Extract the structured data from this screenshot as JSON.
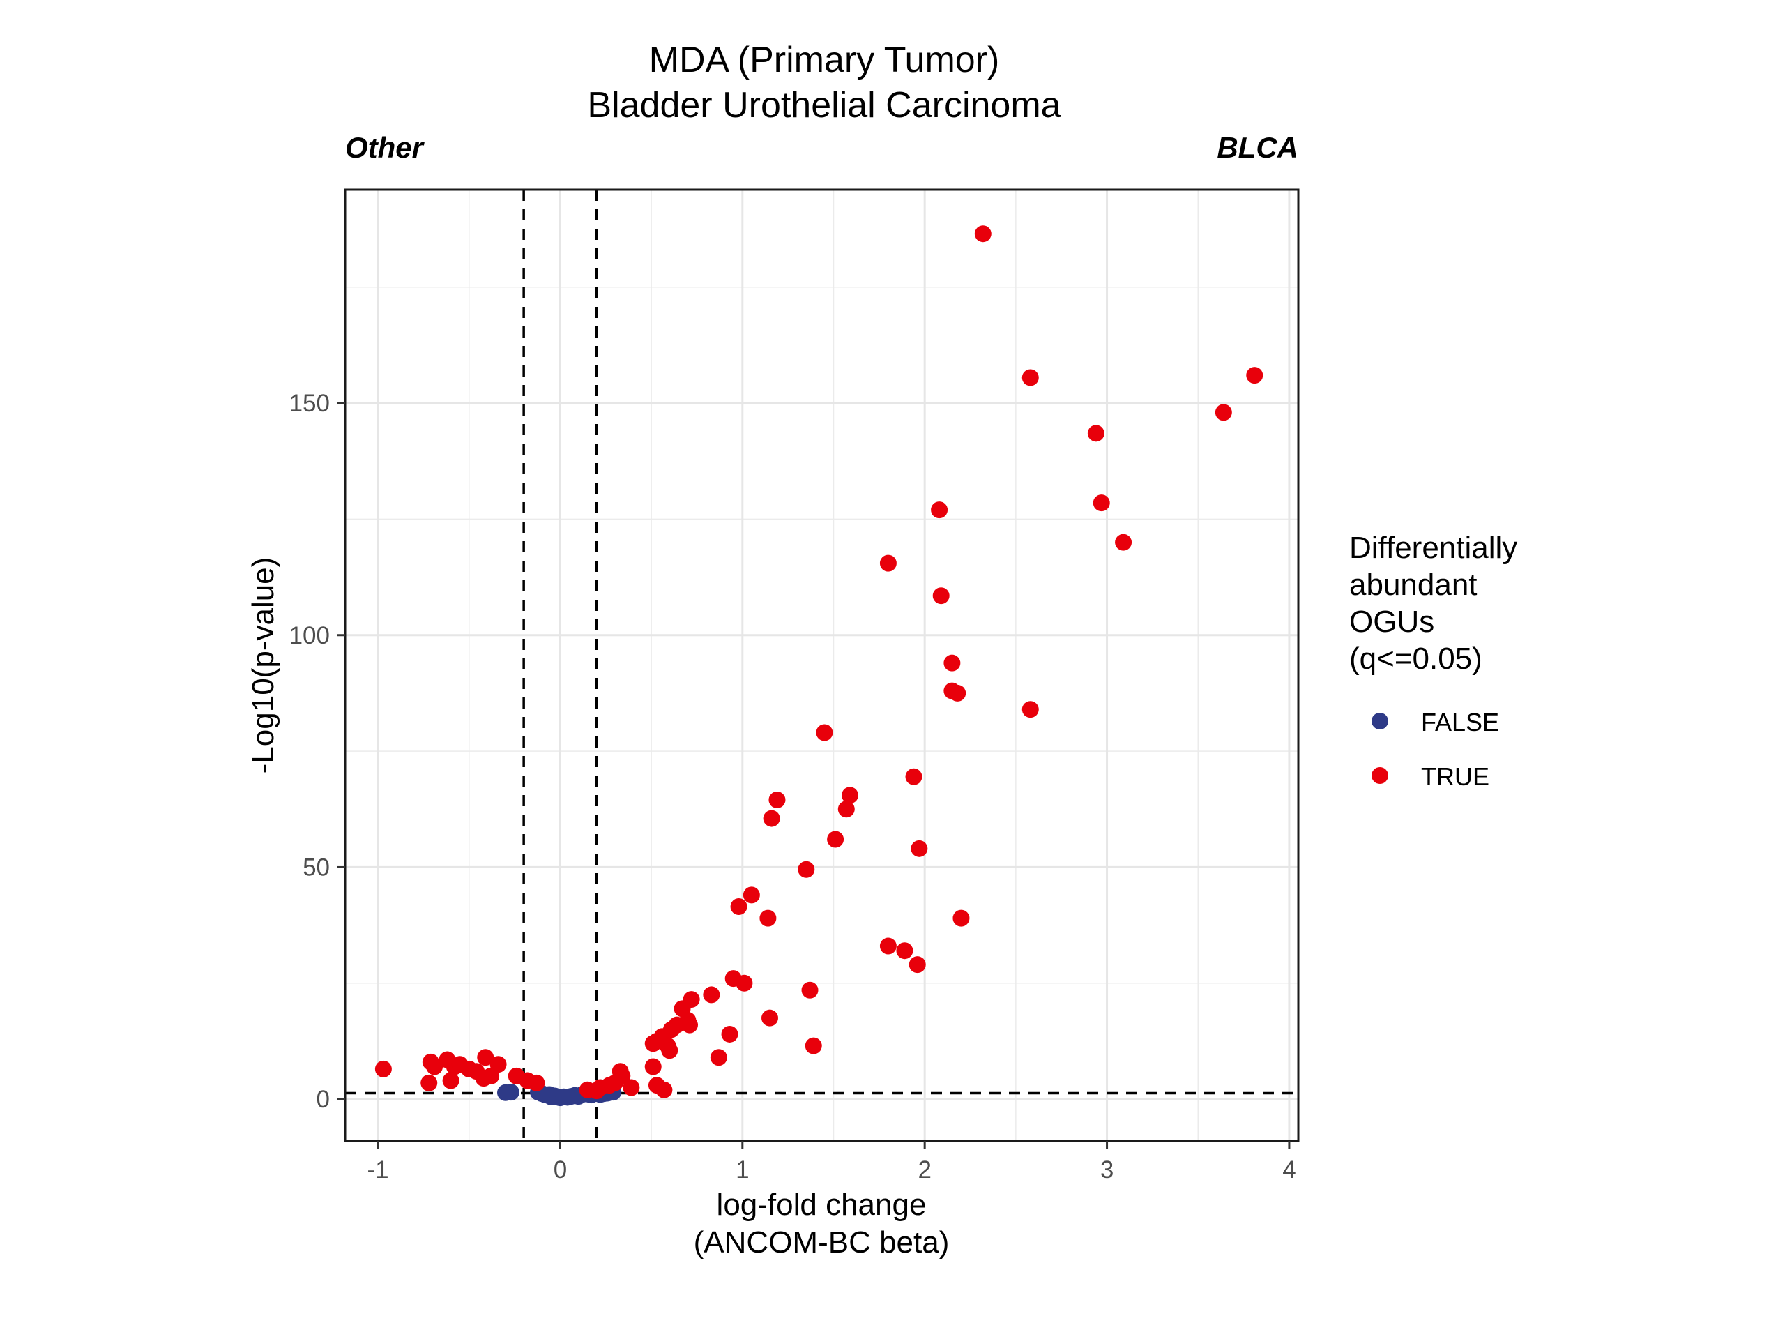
{
  "chart_data": {
    "type": "scatter",
    "title": [
      "MDA (Primary Tumor)",
      "Bladder Urothelial Carcinoma"
    ],
    "left_group_label": "Other",
    "right_group_label": "BLCA",
    "xlabel": [
      "log-fold change",
      "(ANCOM-BC beta)"
    ],
    "ylabel": "-Log10(p-value)",
    "xlim": [
      -1.18,
      4.05
    ],
    "ylim": [
      -9,
      196
    ],
    "x_ticks": [
      -1,
      0,
      1,
      2,
      3,
      4
    ],
    "x_tick_labels": [
      "-1",
      "0",
      "1",
      "2",
      "3",
      "4"
    ],
    "y_ticks": [
      0,
      50,
      100,
      150
    ],
    "y_tick_labels": [
      "0",
      "50",
      "100",
      "150"
    ],
    "grid": true,
    "reference_lines": {
      "vertical": [
        -0.2,
        0.2
      ],
      "horizontal": [
        1.3
      ]
    },
    "legend": {
      "title": [
        "Differentially",
        "abundant",
        "OGUs",
        "(q<=0.05)"
      ],
      "position": "right",
      "entries": [
        {
          "label": "FALSE",
          "color": "#2e3a87"
        },
        {
          "label": "TRUE",
          "color": "#e8000b"
        }
      ]
    },
    "series": [
      {
        "name": "FALSE",
        "color": "#2e3a87",
        "points": [
          [
            -0.3,
            1.4
          ],
          [
            -0.27,
            1.5
          ],
          [
            -0.12,
            1.5
          ],
          [
            -0.1,
            1.2
          ],
          [
            -0.08,
            0.9
          ],
          [
            -0.06,
            1.0
          ],
          [
            -0.05,
            0.5
          ],
          [
            -0.03,
            0.7
          ],
          [
            -0.01,
            0.4
          ],
          [
            0.0,
            0.3
          ],
          [
            0.02,
            0.5
          ],
          [
            0.04,
            0.4
          ],
          [
            0.06,
            0.6
          ],
          [
            0.08,
            0.8
          ],
          [
            0.1,
            0.6
          ],
          [
            0.12,
            1.0
          ],
          [
            0.15,
            1.1
          ],
          [
            0.17,
            0.9
          ],
          [
            0.19,
            1.2
          ],
          [
            0.22,
            1.0
          ],
          [
            0.24,
            1.2
          ],
          [
            0.26,
            1.3
          ],
          [
            0.29,
            1.5
          ]
        ]
      },
      {
        "name": "TRUE",
        "color": "#e8000b",
        "points": [
          [
            2.32,
            186.5
          ],
          [
            2.58,
            155.5
          ],
          [
            3.81,
            156.0
          ],
          [
            3.64,
            148.0
          ],
          [
            2.94,
            143.5
          ],
          [
            2.97,
            128.5
          ],
          [
            2.08,
            127.0
          ],
          [
            3.09,
            120.0
          ],
          [
            1.8,
            115.5
          ],
          [
            2.09,
            108.5
          ],
          [
            2.15,
            94.0
          ],
          [
            2.15,
            88.0
          ],
          [
            2.18,
            87.5
          ],
          [
            2.58,
            84.0
          ],
          [
            1.45,
            79.0
          ],
          [
            1.94,
            69.5
          ],
          [
            1.59,
            65.5
          ],
          [
            1.19,
            64.5
          ],
          [
            1.57,
            62.5
          ],
          [
            1.16,
            60.5
          ],
          [
            1.51,
            56.0
          ],
          [
            1.97,
            54.0
          ],
          [
            1.35,
            49.5
          ],
          [
            1.05,
            44.0
          ],
          [
            0.98,
            41.5
          ],
          [
            1.14,
            39.0
          ],
          [
            2.2,
            39.0
          ],
          [
            1.8,
            33.0
          ],
          [
            1.89,
            32.0
          ],
          [
            1.96,
            29.0
          ],
          [
            0.95,
            26.0
          ],
          [
            1.01,
            25.0
          ],
          [
            1.37,
            23.5
          ],
          [
            0.83,
            22.5
          ],
          [
            0.72,
            21.5
          ],
          [
            0.67,
            19.5
          ],
          [
            0.7,
            17.0
          ],
          [
            0.71,
            16.0
          ],
          [
            1.15,
            17.5
          ],
          [
            0.64,
            16.0
          ],
          [
            0.61,
            15.0
          ],
          [
            0.56,
            13.5
          ],
          [
            0.53,
            12.5
          ],
          [
            0.51,
            12.0
          ],
          [
            0.59,
            11.5
          ],
          [
            0.6,
            10.5
          ],
          [
            1.39,
            11.5
          ],
          [
            0.93,
            14.0
          ],
          [
            0.87,
            9.0
          ],
          [
            0.33,
            6.0
          ],
          [
            0.34,
            5.0
          ],
          [
            0.51,
            7.0
          ],
          [
            0.39,
            2.5
          ],
          [
            0.53,
            3.0
          ],
          [
            0.57,
            2.0
          ],
          [
            -0.97,
            6.5
          ],
          [
            -0.71,
            8.0
          ],
          [
            -0.69,
            7.0
          ],
          [
            -0.62,
            8.5
          ],
          [
            -0.58,
            7.0
          ],
          [
            -0.55,
            7.5
          ],
          [
            -0.5,
            6.5
          ],
          [
            -0.46,
            6.0
          ],
          [
            -0.41,
            9.0
          ],
          [
            -0.38,
            5.0
          ],
          [
            -0.34,
            7.5
          ],
          [
            -0.24,
            5.0
          ],
          [
            -0.18,
            4.0
          ],
          [
            -0.13,
            3.5
          ],
          [
            -0.72,
            3.5
          ],
          [
            -0.6,
            4.0
          ],
          [
            -0.42,
            4.5
          ],
          [
            0.15,
            2.0
          ],
          [
            0.22,
            2.5
          ],
          [
            0.27,
            3.0
          ],
          [
            0.3,
            3.5
          ],
          [
            0.2,
            1.8
          ]
        ]
      }
    ]
  }
}
